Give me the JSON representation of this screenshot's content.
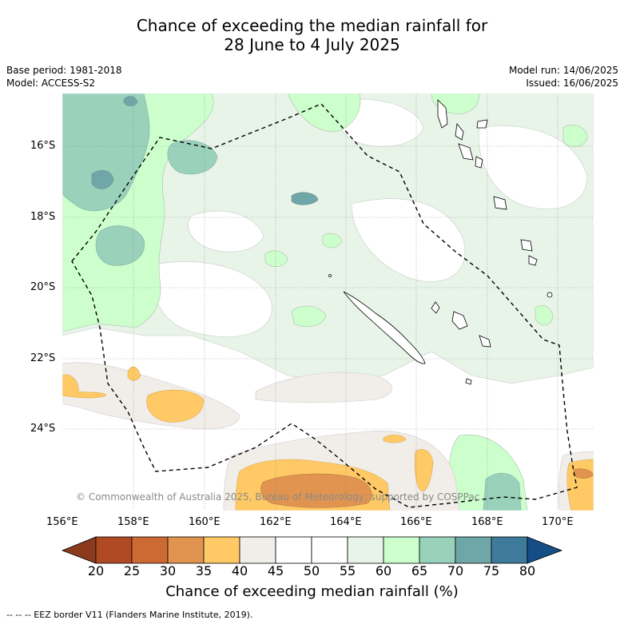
{
  "title_line1": "Chance of exceeding the median rainfall for",
  "title_line2": "28 June to 4 July 2025",
  "base_period": "Base period: 1981-2018",
  "model": "Model: ACCESS-S2",
  "model_run": "Model run: 14/06/2025",
  "issued": "Issued: 16/06/2025",
  "copyright": "© Commonwealth of Australia 2025, Bureau of Meteorology, supported by COSPPac",
  "lat_labels": [
    "16°S",
    "18°S",
    "20°S",
    "22°S",
    "24°S"
  ],
  "lon_labels": [
    "156°E",
    "158°E",
    "160°E",
    "162°E",
    "164°E",
    "166°E",
    "168°E",
    "170°E"
  ],
  "colorbar": {
    "ticks": [
      "20",
      "25",
      "30",
      "35",
      "40",
      "45",
      "50",
      "55",
      "60",
      "65",
      "70",
      "75",
      "80"
    ],
    "colors": [
      "#8b3a1e",
      "#b04a24",
      "#cd6a34",
      "#e09450",
      "#ffc966",
      "#f1ede8",
      "#ffffff",
      "#ffffff",
      "#e8f4e8",
      "#ccffcc",
      "#99d1bb",
      "#6fa7a9",
      "#3e7a9a",
      "#154e86"
    ],
    "title": "Chance of exceeding median rainfall (%)"
  },
  "footnote": "-- -- -- EEZ border V11 (Flanders Marine Institute, 2019).",
  "palette": {
    "p20": "#8b3a1e",
    "p25": "#b04a24",
    "p30": "#cd6a34",
    "p35": "#e09450",
    "p40": "#ffc966",
    "p45": "#f1ede8",
    "p60": "#e8f4e8",
    "p65": "#ccffcc",
    "p70": "#99d1bb",
    "p75": "#6fa7a9",
    "p80": "#3e7a9a"
  }
}
